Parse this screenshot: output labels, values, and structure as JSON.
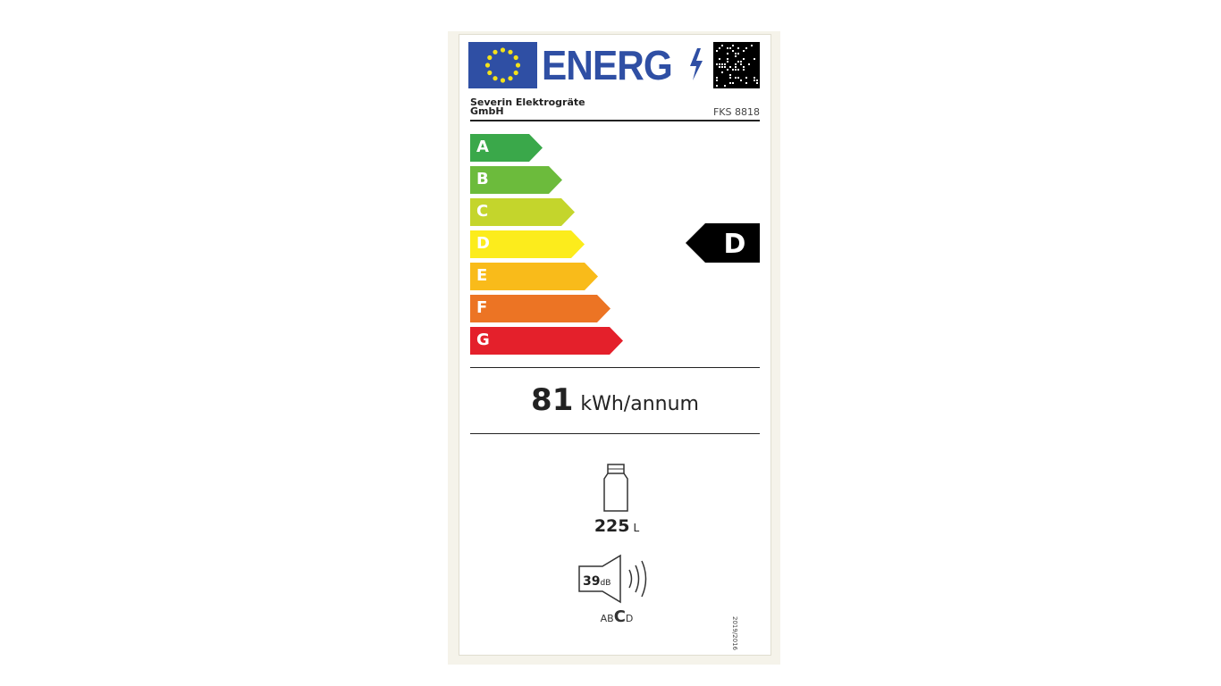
{
  "label": {
    "title": "ENERG",
    "supplier": [
      "Severin Elektrogräte",
      "GmbH"
    ],
    "model": "FKS 8818",
    "scale": [
      {
        "letter": "A",
        "color": "#3aa84a"
      },
      {
        "letter": "B",
        "color": "#6cbb3c"
      },
      {
        "letter": "C",
        "color": "#c4d52c"
      },
      {
        "letter": "D",
        "color": "#fcec1c"
      },
      {
        "letter": "E",
        "color": "#f9bb1a"
      },
      {
        "letter": "F",
        "color": "#ec7424"
      },
      {
        "letter": "G",
        "color": "#e4202b"
      }
    ],
    "rating": "D",
    "energy_value": "81",
    "energy_unit": "kWh/annum",
    "volume_value": "225",
    "volume_unit": "L",
    "noise_value": "39",
    "noise_unit": "dB",
    "noise_classes": [
      "A",
      "B",
      "C",
      "D"
    ],
    "noise_class": "C",
    "regulation": "2019/2016",
    "brand_color": "#2f4fa4"
  }
}
